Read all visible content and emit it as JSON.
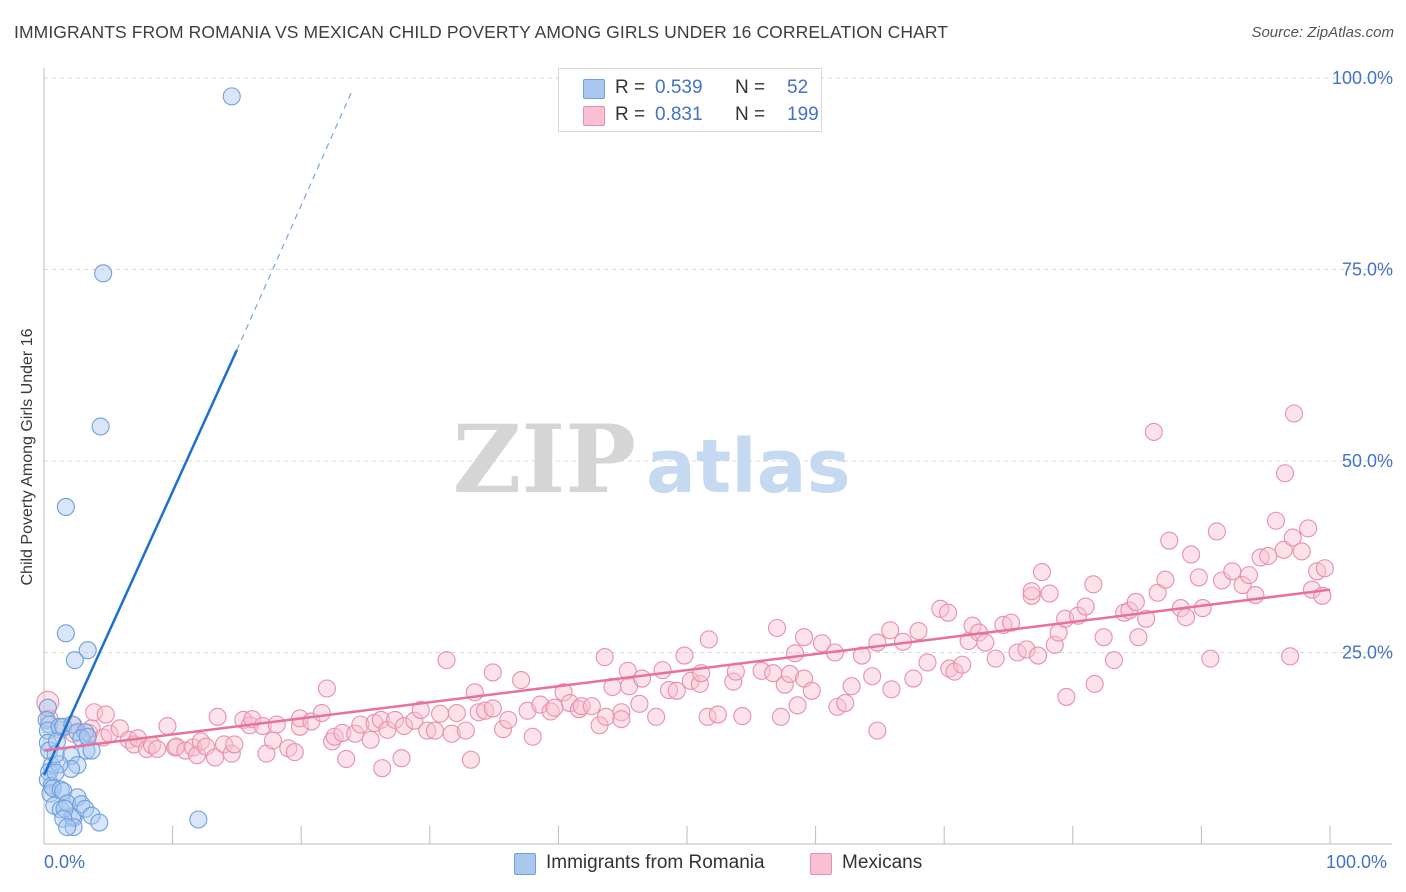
{
  "title": "IMMIGRANTS FROM ROMANIA VS MEXICAN CHILD POVERTY AMONG GIRLS UNDER 16 CORRELATION CHART",
  "source": "Source: ZipAtlas.com",
  "watermark": {
    "part1": "ZIP",
    "part2": "atlas"
  },
  "legend_top": {
    "rows": [
      {
        "r_label": "R =",
        "r_value": "0.539",
        "n_label": "N =",
        "n_value": "52",
        "color": "#a8c8f0",
        "border": "#6fa0dc"
      },
      {
        "r_label": "R =",
        "r_value": "0.831",
        "n_label": "N =",
        "n_value": "199",
        "color": "#f8c0d0",
        "border": "#e890aa"
      }
    ]
  },
  "legend_bottom": [
    {
      "label": "Immigrants from Romania",
      "color": "#a8c8f0",
      "border": "#6fa0dc"
    },
    {
      "label": "Mexicans",
      "color": "#f8c0d0",
      "border": "#e890aa"
    }
  ],
  "colors": {
    "blue": "#1f6fcc",
    "pink": "#e8709a",
    "axis_text": "#4472c4",
    "grid": "#d8d8d8"
  },
  "chart_data": {
    "type": "scatter",
    "title": "IMMIGRANTS FROM ROMANIA VS MEXICAN CHILD POVERTY AMONG GIRLS UNDER 16 CORRELATION CHART",
    "xlabel": "",
    "ylabel": "Child Poverty Among Girls Under 16",
    "xlim": [
      0,
      100
    ],
    "ylim": [
      0,
      100
    ],
    "x_tick_labels": [
      "0.0%",
      "100.0%"
    ],
    "y_ticks": [
      25,
      50,
      75,
      100
    ],
    "y_tick_labels": [
      "25.0%",
      "50.0%",
      "75.0%",
      "100.0%"
    ],
    "grid": true,
    "series": [
      {
        "name": "Immigrants from Romania",
        "r": 0.539,
        "n": 52,
        "trend": {
          "x0": 0.0,
          "y0": 9.0,
          "x1": 15.0,
          "y1": 64.5,
          "dashed_to": {
            "x": 24.0,
            "y": 98.5
          }
        },
        "points": [
          [
            14.6,
            97.6
          ],
          [
            4.6,
            74.5
          ],
          [
            4.4,
            54.5
          ],
          [
            1.7,
            44.0
          ],
          [
            1.7,
            27.5
          ],
          [
            3.4,
            25.3
          ],
          [
            2.4,
            24.0
          ],
          [
            0.3,
            17.8
          ],
          [
            0.2,
            16.2
          ],
          [
            0.4,
            15.6
          ],
          [
            0.3,
            14.8
          ],
          [
            0.3,
            13.2
          ],
          [
            0.4,
            12.2
          ],
          [
            0.6,
            10.2
          ],
          [
            0.4,
            9.4
          ],
          [
            0.3,
            8.4
          ],
          [
            0.6,
            7.6
          ],
          [
            0.5,
            6.6
          ],
          [
            0.8,
            5.0
          ],
          [
            1.3,
            4.5
          ],
          [
            1.2,
            15.3
          ],
          [
            1.5,
            15.3
          ],
          [
            2.2,
            15.6
          ],
          [
            2.6,
            14.6
          ],
          [
            3.2,
            14.6
          ],
          [
            3.3,
            12.2
          ],
          [
            3.7,
            12.2
          ],
          [
            2.1,
            11.5
          ],
          [
            2.6,
            10.3
          ],
          [
            2.1,
            9.8
          ],
          [
            1.2,
            10.4
          ],
          [
            0.9,
            9.3
          ],
          [
            0.7,
            7.3
          ],
          [
            1.3,
            7.1
          ],
          [
            1.5,
            6.9
          ],
          [
            2.6,
            6.1
          ],
          [
            2.3,
            3.4
          ],
          [
            2.2,
            3.6
          ],
          [
            1.8,
            5.3
          ],
          [
            2.9,
            5.2
          ],
          [
            1.6,
            4.6
          ],
          [
            3.2,
            4.6
          ],
          [
            1.5,
            3.3
          ],
          [
            3.7,
            3.7
          ],
          [
            4.3,
            2.8
          ],
          [
            12.0,
            3.2
          ],
          [
            2.3,
            2.2
          ],
          [
            1.8,
            2.2
          ],
          [
            2.9,
            13.8
          ],
          [
            3.4,
            14.0
          ],
          [
            1.0,
            13.4
          ],
          [
            0.9,
            11.7
          ]
        ]
      },
      {
        "name": "Mexicans",
        "r": 0.831,
        "n": 199,
        "trend": {
          "x0": 0.0,
          "y0": 12.2,
          "x1": 100.0,
          "y1": 33.2
        },
        "points": [
          [
            0.4,
            16.4
          ],
          [
            1.3,
            14.9
          ],
          [
            2.3,
            15.5
          ],
          [
            2.3,
            14.4
          ],
          [
            3.5,
            14.5
          ],
          [
            3.7,
            15.1
          ],
          [
            3.9,
            17.2
          ],
          [
            4.6,
            13.9
          ],
          [
            4.8,
            16.9
          ],
          [
            5.1,
            14.4
          ],
          [
            5.9,
            15.1
          ],
          [
            6.6,
            13.6
          ],
          [
            7.0,
            13.0
          ],
          [
            7.3,
            13.8
          ],
          [
            8.0,
            12.4
          ],
          [
            8.4,
            12.9
          ],
          [
            8.8,
            12.4
          ],
          [
            9.6,
            15.4
          ],
          [
            10.2,
            12.6
          ],
          [
            10.3,
            12.7
          ],
          [
            11.0,
            12.2
          ],
          [
            11.6,
            12.6
          ],
          [
            11.9,
            11.6
          ],
          [
            12.2,
            13.4
          ],
          [
            12.6,
            12.7
          ],
          [
            13.3,
            11.3
          ],
          [
            13.5,
            16.6
          ],
          [
            14.0,
            13.0
          ],
          [
            14.6,
            11.8
          ],
          [
            14.8,
            13.0
          ],
          [
            15.5,
            16.2
          ],
          [
            16.0,
            15.5
          ],
          [
            16.2,
            16.3
          ],
          [
            17.0,
            15.4
          ],
          [
            17.3,
            11.8
          ],
          [
            17.8,
            13.5
          ],
          [
            18.1,
            15.6
          ],
          [
            19.0,
            12.5
          ],
          [
            19.5,
            12.0
          ],
          [
            19.9,
            15.3
          ],
          [
            19.9,
            16.4
          ],
          [
            20.8,
            16.0
          ],
          [
            21.6,
            17.1
          ],
          [
            22.0,
            20.3
          ],
          [
            22.4,
            13.4
          ],
          [
            22.6,
            14.0
          ],
          [
            23.2,
            14.5
          ],
          [
            23.5,
            11.1
          ],
          [
            24.2,
            14.4
          ],
          [
            24.6,
            15.6
          ],
          [
            25.4,
            13.6
          ],
          [
            25.7,
            15.8
          ],
          [
            26.2,
            16.2
          ],
          [
            26.3,
            9.9
          ],
          [
            26.7,
            14.9
          ],
          [
            27.3,
            16.2
          ],
          [
            27.8,
            11.2
          ],
          [
            28.0,
            15.4
          ],
          [
            28.8,
            16.1
          ],
          [
            29.3,
            17.5
          ],
          [
            29.8,
            14.8
          ],
          [
            30.4,
            14.8
          ],
          [
            30.8,
            17.0
          ],
          [
            31.3,
            24.0
          ],
          [
            31.7,
            14.4
          ],
          [
            32.1,
            17.1
          ],
          [
            32.8,
            14.8
          ],
          [
            33.2,
            11.0
          ],
          [
            33.5,
            19.8
          ],
          [
            33.8,
            17.2
          ],
          [
            34.3,
            17.4
          ],
          [
            34.9,
            17.7
          ],
          [
            34.9,
            22.4
          ],
          [
            35.7,
            15.0
          ],
          [
            36.1,
            16.2
          ],
          [
            37.1,
            21.4
          ],
          [
            37.6,
            17.4
          ],
          [
            38.0,
            14.0
          ],
          [
            38.6,
            18.2
          ],
          [
            39.4,
            17.3
          ],
          [
            39.7,
            17.8
          ],
          [
            40.4,
            19.8
          ],
          [
            40.9,
            18.4
          ],
          [
            41.6,
            17.6
          ],
          [
            41.8,
            18.0
          ],
          [
            42.6,
            18.0
          ],
          [
            43.2,
            15.5
          ],
          [
            43.6,
            24.4
          ],
          [
            43.7,
            16.6
          ],
          [
            44.2,
            20.5
          ],
          [
            44.9,
            17.2
          ],
          [
            44.9,
            16.3
          ],
          [
            45.4,
            22.6
          ],
          [
            45.5,
            20.6
          ],
          [
            46.3,
            18.3
          ],
          [
            46.5,
            21.6
          ],
          [
            47.6,
            16.6
          ],
          [
            48.1,
            22.7
          ],
          [
            48.6,
            20.1
          ],
          [
            49.2,
            20.0
          ],
          [
            49.8,
            24.6
          ],
          [
            50.3,
            21.3
          ],
          [
            51.0,
            20.9
          ],
          [
            51.1,
            22.3
          ],
          [
            51.6,
            16.6
          ],
          [
            51.7,
            26.7
          ],
          [
            52.4,
            16.9
          ],
          [
            53.6,
            21.2
          ],
          [
            53.8,
            22.5
          ],
          [
            54.3,
            16.7
          ],
          [
            55.8,
            22.6
          ],
          [
            56.7,
            22.3
          ],
          [
            57.0,
            28.2
          ],
          [
            57.3,
            16.6
          ],
          [
            57.6,
            20.8
          ],
          [
            58.0,
            22.2
          ],
          [
            58.4,
            24.9
          ],
          [
            58.6,
            18.1
          ],
          [
            59.1,
            27.0
          ],
          [
            59.1,
            21.6
          ],
          [
            59.7,
            20.0
          ],
          [
            60.5,
            26.2
          ],
          [
            61.5,
            25.0
          ],
          [
            61.7,
            17.9
          ],
          [
            62.3,
            18.4
          ],
          [
            62.8,
            20.6
          ],
          [
            63.6,
            24.6
          ],
          [
            64.4,
            21.9
          ],
          [
            64.8,
            14.8
          ],
          [
            64.8,
            26.3
          ],
          [
            65.8,
            27.9
          ],
          [
            65.9,
            20.2
          ],
          [
            66.8,
            26.4
          ],
          [
            67.6,
            21.6
          ],
          [
            68.0,
            27.8
          ],
          [
            68.7,
            23.7
          ],
          [
            69.7,
            30.7
          ],
          [
            70.3,
            30.2
          ],
          [
            70.4,
            22.9
          ],
          [
            70.8,
            22.5
          ],
          [
            71.4,
            23.4
          ],
          [
            71.9,
            26.5
          ],
          [
            72.2,
            28.5
          ],
          [
            72.7,
            27.6
          ],
          [
            73.2,
            26.3
          ],
          [
            74.0,
            24.2
          ],
          [
            74.6,
            28.6
          ],
          [
            75.2,
            28.9
          ],
          [
            75.7,
            25.0
          ],
          [
            76.4,
            25.4
          ],
          [
            76.8,
            32.4
          ],
          [
            76.8,
            33.0
          ],
          [
            77.3,
            24.6
          ],
          [
            77.6,
            35.5
          ],
          [
            78.2,
            32.7
          ],
          [
            78.6,
            26.0
          ],
          [
            78.9,
            27.6
          ],
          [
            79.4,
            29.4
          ],
          [
            79.5,
            19.2
          ],
          [
            80.4,
            29.8
          ],
          [
            81.0,
            31.0
          ],
          [
            81.6,
            33.9
          ],
          [
            81.7,
            20.9
          ],
          [
            82.4,
            27.0
          ],
          [
            83.2,
            24.0
          ],
          [
            84.0,
            30.2
          ],
          [
            84.4,
            30.5
          ],
          [
            84.9,
            31.6
          ],
          [
            85.1,
            27.0
          ],
          [
            85.7,
            29.4
          ],
          [
            86.6,
            32.8
          ],
          [
            87.2,
            34.5
          ],
          [
            87.5,
            39.6
          ],
          [
            88.4,
            30.8
          ],
          [
            88.8,
            29.6
          ],
          [
            89.2,
            37.8
          ],
          [
            89.8,
            34.8
          ],
          [
            90.1,
            30.8
          ],
          [
            90.7,
            24.2
          ],
          [
            91.2,
            40.8
          ],
          [
            91.6,
            34.4
          ],
          [
            92.4,
            35.6
          ],
          [
            93.2,
            33.8
          ],
          [
            93.7,
            35.1
          ],
          [
            94.2,
            32.5
          ],
          [
            94.6,
            37.4
          ],
          [
            95.2,
            37.6
          ],
          [
            95.8,
            42.2
          ],
          [
            96.4,
            38.4
          ],
          [
            96.9,
            24.5
          ],
          [
            97.1,
            40.0
          ],
          [
            97.8,
            38.2
          ],
          [
            98.3,
            41.2
          ],
          [
            98.6,
            33.2
          ],
          [
            99.0,
            35.6
          ],
          [
            99.4,
            32.4
          ],
          [
            99.6,
            36.0
          ],
          [
            96.5,
            48.4
          ],
          [
            97.2,
            56.2
          ],
          [
            86.3,
            53.8
          ]
        ]
      }
    ]
  }
}
